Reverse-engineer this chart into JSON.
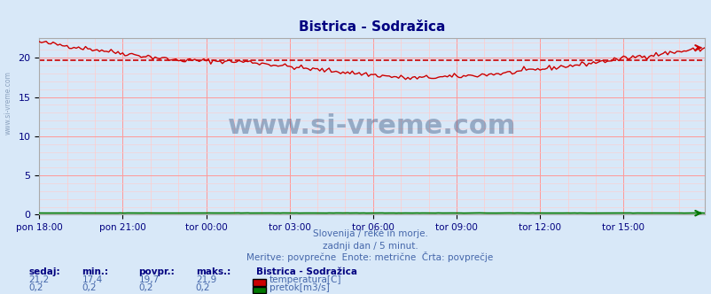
{
  "title": "Bistrica - Sodražica",
  "bg_color": "#d8e8f8",
  "plot_bg_color": "#d8e8f8",
  "fig_bg_color": "#d8e8f8",
  "grid_color_major": "#ff9999",
  "grid_color_minor": "#ffcccc",
  "x_tick_labels": [
    "pon 18:00",
    "pon 21:00",
    "tor 00:00",
    "tor 03:00",
    "tor 06:00",
    "tor 09:00",
    "tor 12:00",
    "tor 15:00"
  ],
  "x_tick_positions": [
    0,
    36,
    72,
    108,
    144,
    180,
    216,
    252
  ],
  "y_ticks": [
    0,
    5,
    10,
    15,
    20
  ],
  "ylim": [
    0,
    22.5
  ],
  "xlim": [
    0,
    287
  ],
  "temp_color": "#cc0000",
  "flow_color": "#007700",
  "dashed_line_value": 19.7,
  "dashed_line_color": "#cc0000",
  "title_color": "#000080",
  "tick_color": "#000080",
  "label_color": "#4466aa",
  "watermark_text": "www.si-vreme.com",
  "watermark_color": "#1a3a6a",
  "watermark_alpha": 0.35,
  "subtitle_lines": [
    "Slovenija / reke in morje.",
    "zadnji dan / 5 minut.",
    "Meritve: povprečne  Enote: metrične  Črta: povprečje"
  ],
  "subtitle_color": "#4466aa",
  "footer_color": "#000080",
  "legend_title": "Bistrica - Sodražica",
  "legend_items": [
    {
      "label": "temperatura[C]",
      "color": "#cc0000"
    },
    {
      "label": "pretok[m3/s]",
      "color": "#007700"
    }
  ],
  "stats_headers": [
    "sedaj:",
    "min.:",
    "povpr.:",
    "maks.:"
  ],
  "stats_temp": [
    "21,2",
    "17,4",
    "19,7",
    "21,9"
  ],
  "stats_flow": [
    "0,2",
    "0,2",
    "0,2",
    "0,2"
  ],
  "left_label": "www.si-vreme.com",
  "arrow_color": "#cc0000"
}
